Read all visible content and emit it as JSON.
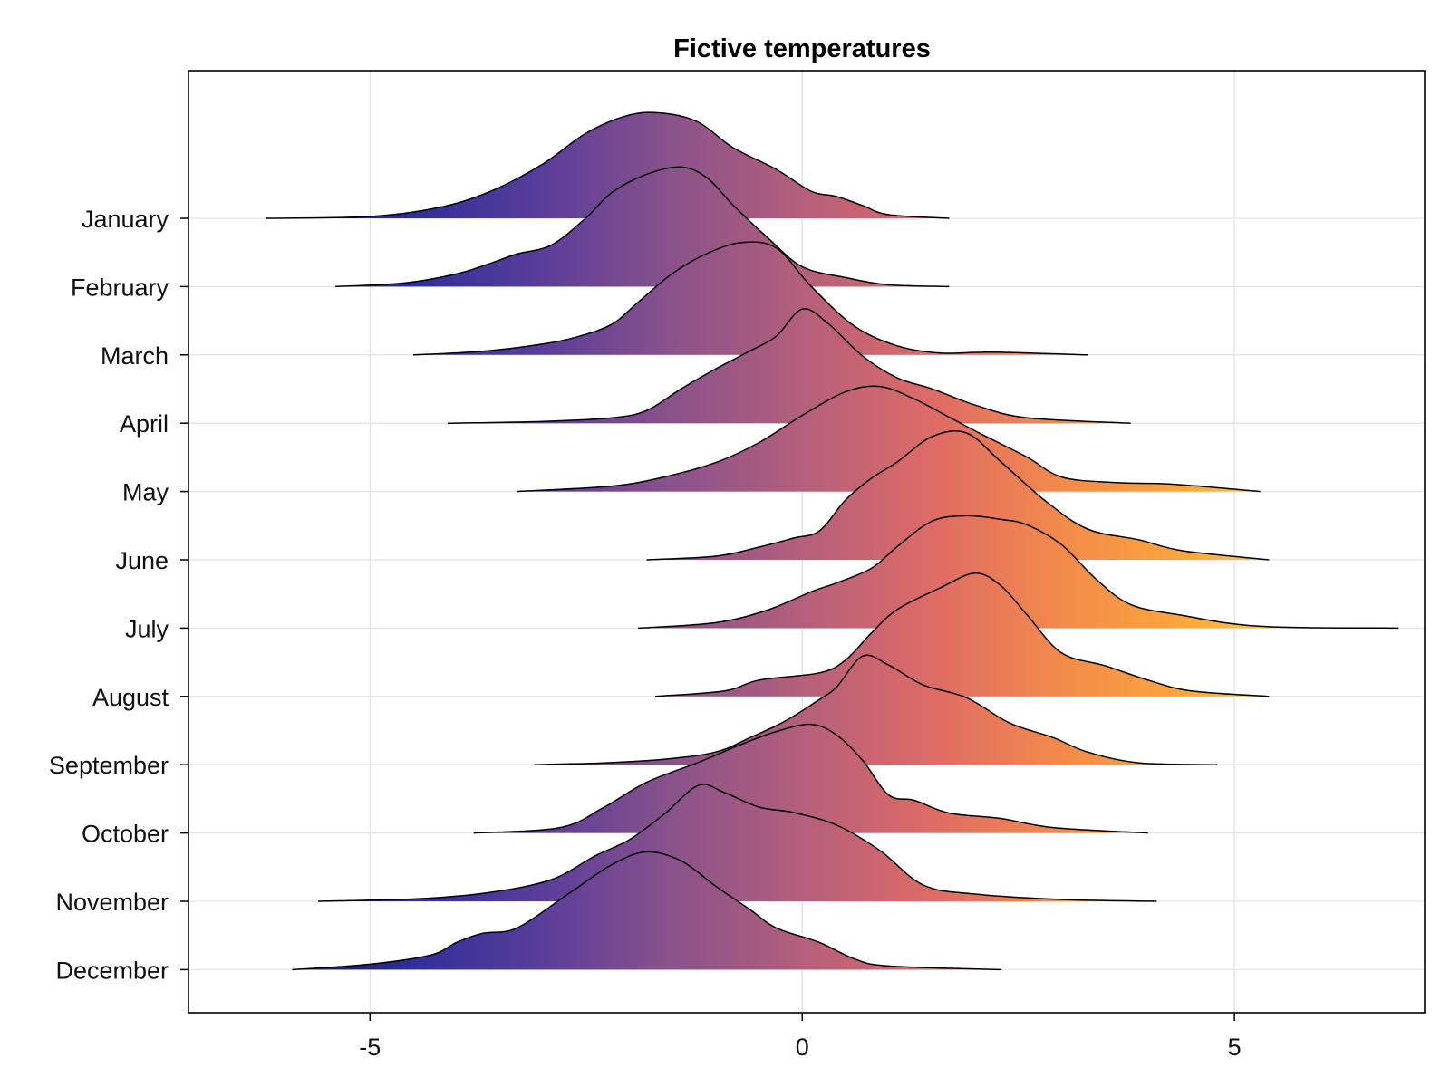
{
  "chart_data": {
    "type": "ridgeline",
    "title": "Fictive temperatures",
    "xlabel": "",
    "ylabel": "",
    "xlim": [
      -7.1,
      7.2
    ],
    "xticks": [
      -5,
      0,
      5
    ],
    "xtick_labels": [
      "-5",
      "0",
      "5"
    ],
    "grid": true,
    "colormap": "plasma-like (dark navy to yellow), mapped along x",
    "colormap_range": [
      -6,
      6
    ],
    "colormap_stops": [
      "#0d1a3a",
      "#2e2f9a",
      "#5a3d9a",
      "#8a528b",
      "#b45f7c",
      "#de6b66",
      "#f38a4a",
      "#fba83c",
      "#f8e25a"
    ],
    "series": [
      {
        "name": "January",
        "x_range": [
          -6.2,
          1.7
        ],
        "points": [
          [
            -6.2,
            0
          ],
          [
            -5.0,
            0.01
          ],
          [
            -4.2,
            0.06
          ],
          [
            -3.6,
            0.15
          ],
          [
            -3.0,
            0.3
          ],
          [
            -2.5,
            0.47
          ],
          [
            -2.0,
            0.57
          ],
          [
            -1.6,
            0.58
          ],
          [
            -1.2,
            0.53
          ],
          [
            -0.8,
            0.39
          ],
          [
            -0.3,
            0.27
          ],
          [
            0.1,
            0.15
          ],
          [
            0.4,
            0.12
          ],
          [
            0.7,
            0.07
          ],
          [
            1.0,
            0.02
          ],
          [
            1.7,
            0
          ]
        ]
      },
      {
        "name": "February",
        "x_range": [
          -5.4,
          1.7
        ],
        "points": [
          [
            -5.4,
            0
          ],
          [
            -4.6,
            0.02
          ],
          [
            -4.0,
            0.07
          ],
          [
            -3.6,
            0.13
          ],
          [
            -3.3,
            0.18
          ],
          [
            -2.9,
            0.23
          ],
          [
            -2.5,
            0.38
          ],
          [
            -2.2,
            0.52
          ],
          [
            -1.8,
            0.62
          ],
          [
            -1.4,
            0.66
          ],
          [
            -1.1,
            0.6
          ],
          [
            -0.8,
            0.45
          ],
          [
            -0.4,
            0.27
          ],
          [
            0.0,
            0.11
          ],
          [
            0.5,
            0.05
          ],
          [
            1.0,
            0.01
          ],
          [
            1.7,
            0
          ]
        ]
      },
      {
        "name": "March",
        "x_range": [
          -4.5,
          3.3
        ],
        "points": [
          [
            -4.5,
            0
          ],
          [
            -3.7,
            0.02
          ],
          [
            -3.0,
            0.06
          ],
          [
            -2.6,
            0.1
          ],
          [
            -2.2,
            0.17
          ],
          [
            -1.9,
            0.29
          ],
          [
            -1.5,
            0.45
          ],
          [
            -1.1,
            0.56
          ],
          [
            -0.7,
            0.62
          ],
          [
            -0.3,
            0.59
          ],
          [
            0.1,
            0.38
          ],
          [
            0.6,
            0.16
          ],
          [
            1.1,
            0.05
          ],
          [
            1.6,
            0.01
          ],
          [
            2.2,
            0.015
          ],
          [
            3.3,
            0
          ]
        ]
      },
      {
        "name": "April",
        "x_range": [
          -4.1,
          3.8
        ],
        "points": [
          [
            -4.1,
            0
          ],
          [
            -3.0,
            0.01
          ],
          [
            -2.2,
            0.03
          ],
          [
            -1.8,
            0.07
          ],
          [
            -1.4,
            0.19
          ],
          [
            -1.0,
            0.3
          ],
          [
            -0.6,
            0.4
          ],
          [
            -0.3,
            0.48
          ],
          [
            0.0,
            0.63
          ],
          [
            0.3,
            0.55
          ],
          [
            0.7,
            0.37
          ],
          [
            1.1,
            0.25
          ],
          [
            1.5,
            0.19
          ],
          [
            2.0,
            0.1
          ],
          [
            2.6,
            0.03
          ],
          [
            3.8,
            0
          ]
        ]
      },
      {
        "name": "May",
        "x_range": [
          -3.3,
          5.3
        ],
        "points": [
          [
            -3.3,
            0
          ],
          [
            -2.2,
            0.03
          ],
          [
            -1.6,
            0.08
          ],
          [
            -1.0,
            0.16
          ],
          [
            -0.5,
            0.27
          ],
          [
            0.0,
            0.42
          ],
          [
            0.5,
            0.55
          ],
          [
            0.9,
            0.58
          ],
          [
            1.3,
            0.51
          ],
          [
            1.7,
            0.41
          ],
          [
            2.1,
            0.31
          ],
          [
            2.6,
            0.19
          ],
          [
            3.0,
            0.08
          ],
          [
            3.6,
            0.05
          ],
          [
            4.3,
            0.04
          ],
          [
            5.3,
            0
          ]
        ]
      },
      {
        "name": "June",
        "x_range": [
          -1.8,
          5.4
        ],
        "points": [
          [
            -1.8,
            0
          ],
          [
            -1.0,
            0.02
          ],
          [
            -0.5,
            0.07
          ],
          [
            -0.1,
            0.12
          ],
          [
            0.2,
            0.16
          ],
          [
            0.5,
            0.33
          ],
          [
            0.8,
            0.45
          ],
          [
            1.1,
            0.54
          ],
          [
            1.5,
            0.68
          ],
          [
            1.9,
            0.7
          ],
          [
            2.3,
            0.54
          ],
          [
            2.8,
            0.33
          ],
          [
            3.3,
            0.17
          ],
          [
            3.9,
            0.11
          ],
          [
            4.4,
            0.05
          ],
          [
            5.4,
            0
          ]
        ]
      },
      {
        "name": "July",
        "x_range": [
          -1.9,
          6.9
        ],
        "points": [
          [
            -1.9,
            0
          ],
          [
            -1.0,
            0.03
          ],
          [
            -0.4,
            0.1
          ],
          [
            0.1,
            0.2
          ],
          [
            0.4,
            0.25
          ],
          [
            0.8,
            0.33
          ],
          [
            1.1,
            0.45
          ],
          [
            1.5,
            0.59
          ],
          [
            1.9,
            0.62
          ],
          [
            2.3,
            0.6
          ],
          [
            2.6,
            0.57
          ],
          [
            3.0,
            0.46
          ],
          [
            3.4,
            0.27
          ],
          [
            3.8,
            0.13
          ],
          [
            4.4,
            0.07
          ],
          [
            5.3,
            0.01
          ],
          [
            6.9,
            0
          ]
        ]
      },
      {
        "name": "August",
        "x_range": [
          -1.7,
          5.4
        ],
        "points": [
          [
            -1.7,
            0
          ],
          [
            -0.9,
            0.03
          ],
          [
            -0.5,
            0.09
          ],
          [
            0.2,
            0.13
          ],
          [
            0.5,
            0.2
          ],
          [
            0.8,
            0.35
          ],
          [
            1.1,
            0.48
          ],
          [
            1.6,
            0.6
          ],
          [
            2.0,
            0.68
          ],
          [
            2.3,
            0.61
          ],
          [
            2.6,
            0.45
          ],
          [
            3.0,
            0.24
          ],
          [
            3.5,
            0.17
          ],
          [
            4.0,
            0.09
          ],
          [
            4.5,
            0.03
          ],
          [
            5.4,
            0
          ]
        ]
      },
      {
        "name": "September",
        "x_range": [
          -3.1,
          4.8
        ],
        "points": [
          [
            -3.1,
            0
          ],
          [
            -2.3,
            0.01
          ],
          [
            -1.6,
            0.03
          ],
          [
            -1.0,
            0.07
          ],
          [
            -0.6,
            0.15
          ],
          [
            -0.2,
            0.24
          ],
          [
            0.2,
            0.36
          ],
          [
            0.4,
            0.43
          ],
          [
            0.7,
            0.6
          ],
          [
            1.0,
            0.55
          ],
          [
            1.4,
            0.44
          ],
          [
            1.9,
            0.37
          ],
          [
            2.4,
            0.23
          ],
          [
            2.9,
            0.15
          ],
          [
            3.3,
            0.07
          ],
          [
            3.9,
            0.01
          ],
          [
            4.8,
            0
          ]
        ]
      },
      {
        "name": "October",
        "x_range": [
          -3.8,
          4.0
        ],
        "points": [
          [
            -3.8,
            0
          ],
          [
            -2.8,
            0.03
          ],
          [
            -2.3,
            0.14
          ],
          [
            -1.8,
            0.28
          ],
          [
            -1.2,
            0.39
          ],
          [
            -0.7,
            0.49
          ],
          [
            -0.3,
            0.56
          ],
          [
            0.1,
            0.6
          ],
          [
            0.4,
            0.54
          ],
          [
            0.7,
            0.4
          ],
          [
            1.0,
            0.21
          ],
          [
            1.3,
            0.18
          ],
          [
            1.7,
            0.11
          ],
          [
            2.3,
            0.08
          ],
          [
            2.9,
            0.03
          ],
          [
            4.0,
            0
          ]
        ]
      },
      {
        "name": "November",
        "x_range": [
          -5.6,
          4.1
        ],
        "points": [
          [
            -5.6,
            0
          ],
          [
            -4.4,
            0.015
          ],
          [
            -3.6,
            0.05
          ],
          [
            -2.9,
            0.12
          ],
          [
            -2.4,
            0.25
          ],
          [
            -2.0,
            0.34
          ],
          [
            -1.6,
            0.48
          ],
          [
            -1.2,
            0.64
          ],
          [
            -0.9,
            0.6
          ],
          [
            -0.5,
            0.52
          ],
          [
            -0.1,
            0.49
          ],
          [
            0.4,
            0.42
          ],
          [
            0.9,
            0.28
          ],
          [
            1.4,
            0.09
          ],
          [
            2.0,
            0.04
          ],
          [
            3.0,
            0.01
          ],
          [
            4.1,
            0
          ]
        ]
      },
      {
        "name": "December",
        "x_range": [
          -5.9,
          2.3
        ],
        "points": [
          [
            -5.9,
            0
          ],
          [
            -5.0,
            0.03
          ],
          [
            -4.3,
            0.08
          ],
          [
            -4.0,
            0.15
          ],
          [
            -3.7,
            0.2
          ],
          [
            -3.3,
            0.23
          ],
          [
            -2.7,
            0.42
          ],
          [
            -2.2,
            0.58
          ],
          [
            -1.8,
            0.65
          ],
          [
            -1.4,
            0.6
          ],
          [
            -1.0,
            0.46
          ],
          [
            -0.6,
            0.33
          ],
          [
            -0.3,
            0.23
          ],
          [
            0.2,
            0.15
          ],
          [
            0.6,
            0.06
          ],
          [
            1.0,
            0.02
          ],
          [
            2.3,
            0
          ]
        ]
      }
    ]
  }
}
